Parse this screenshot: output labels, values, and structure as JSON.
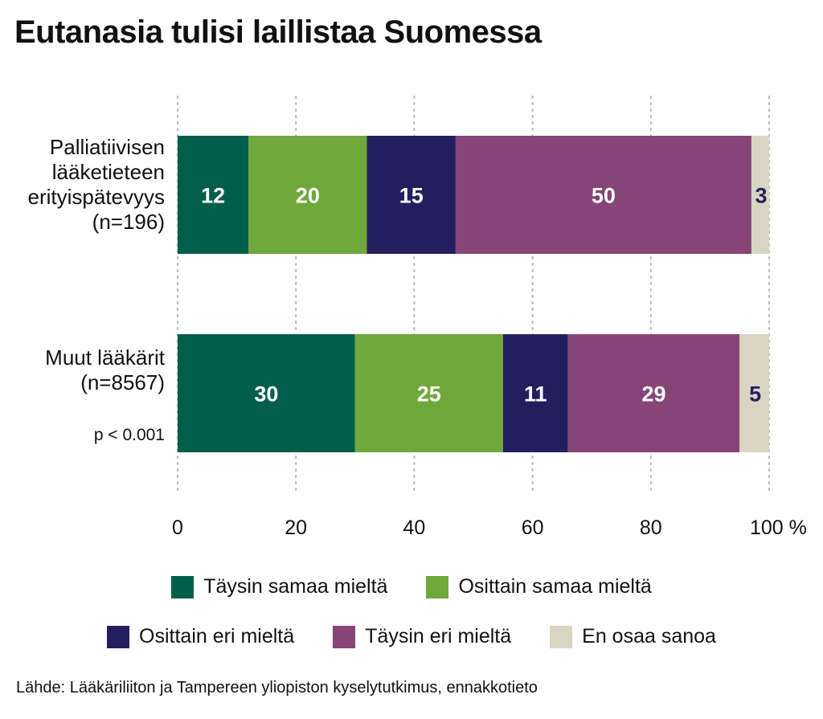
{
  "title": "Eutanasia tulisi laillistaa Suomessa",
  "source": "Lähde: Lääkäriliiton ja Tampereen yliopiston kyselytutkimus, ennakkotieto",
  "chart_data": {
    "type": "bar",
    "orientation": "horizontal",
    "stacked": true,
    "title": "Eutanasia tulisi laillistaa Suomessa",
    "categories": [
      [
        "Palliatiivisen",
        "lääketieteen",
        "erityispätevyys",
        "(n=196)"
      ],
      [
        "Muut lääkärit",
        "(n=8567)"
      ]
    ],
    "annotation": "p < 0.001",
    "series": [
      {
        "name": "Täysin samaa mieltä",
        "color": "#005e4b",
        "label_color": "#ffffff",
        "values": [
          12,
          30
        ]
      },
      {
        "name": "Osittain samaa mieltä",
        "color": "#6fa83b",
        "label_color": "#ffffff",
        "values": [
          20,
          25
        ]
      },
      {
        "name": "Osittain eri mieltä",
        "color": "#231f5f",
        "label_color": "#ffffff",
        "values": [
          15,
          11
        ]
      },
      {
        "name": "Täysin eri mieltä",
        "color": "#874476",
        "label_color": "#ffffff",
        "values": [
          50,
          29
        ]
      },
      {
        "name": "En osaa sanoa",
        "color": "#d9d5c3",
        "label_color": "#231f5f",
        "values": [
          3,
          5
        ]
      }
    ],
    "xlim": [
      0,
      100
    ],
    "xticks": [
      "0",
      "20",
      "40",
      "60",
      "80",
      "100 %"
    ],
    "grid": true,
    "legend": "bottom"
  }
}
